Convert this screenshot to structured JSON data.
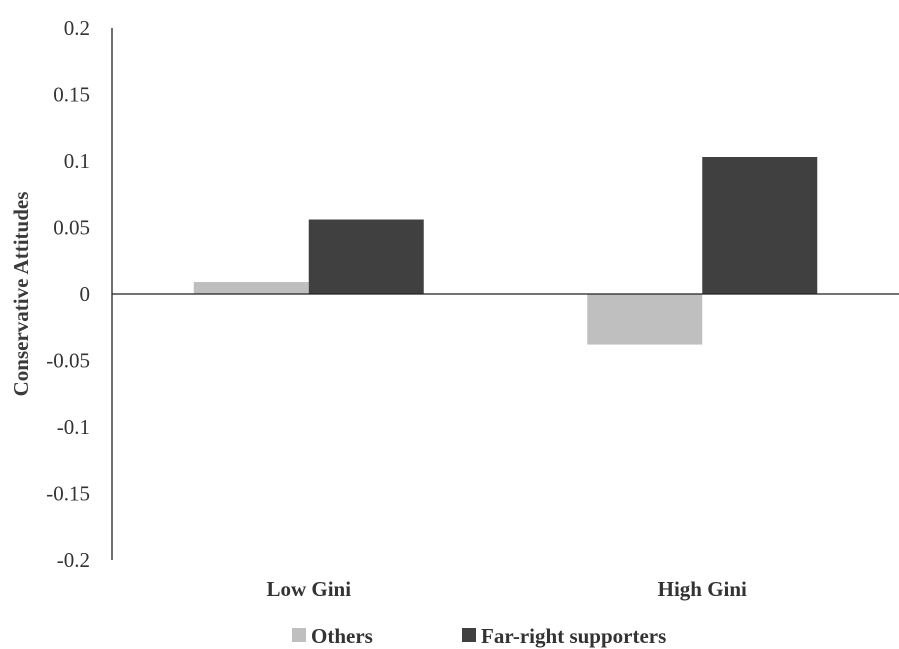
{
  "chart_data": {
    "type": "bar",
    "title": "",
    "xlabel": "",
    "ylabel": "Conservative Attitudes",
    "categories": [
      "Low Gini",
      "High Gini"
    ],
    "series": [
      {
        "name": "Others",
        "values": [
          0.009,
          -0.038
        ],
        "color": "#bfbfbf"
      },
      {
        "name": "Far-right supporters",
        "values": [
          0.056,
          0.103
        ],
        "color": "#404040"
      }
    ],
    "ylim": [
      -0.2,
      0.2
    ],
    "yticks": [
      0.2,
      0.15,
      0.1,
      0.05,
      0,
      -0.05,
      -0.1,
      -0.15,
      -0.2
    ],
    "ytick_labels": [
      "0.2",
      "0.15",
      "0.1",
      "0.05",
      "0",
      "-0.05",
      "-0.1",
      "-0.15",
      "-0.2"
    ],
    "grid": false,
    "legend_position": "bottom"
  }
}
